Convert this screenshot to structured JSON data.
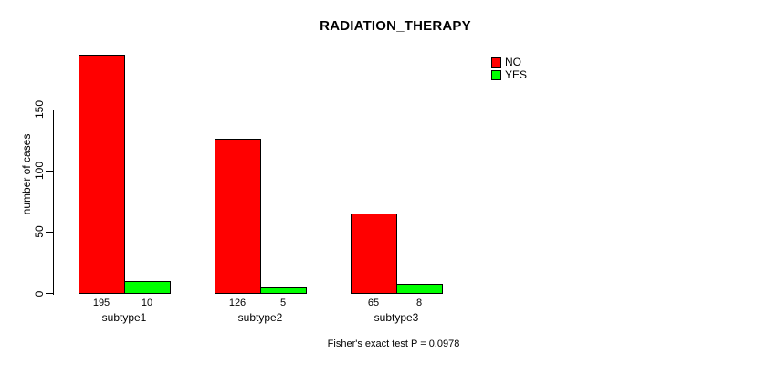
{
  "chart_data": {
    "type": "bar",
    "title": "RADIATION_THERAPY",
    "xlabel": "",
    "ylabel": "number of cases",
    "categories": [
      "subtype1",
      "subtype2",
      "subtype3"
    ],
    "series": [
      {
        "name": "NO",
        "color": "#FF0000",
        "values": [
          195,
          126,
          65
        ]
      },
      {
        "name": "YES",
        "color": "#00FF00",
        "values": [
          10,
          5,
          8
        ]
      }
    ],
    "ylim": [
      0,
      195
    ],
    "y_ticks": [
      0,
      50,
      100,
      150
    ],
    "grid": false,
    "legend_position": "top-right",
    "bar_value_labels_shown": true,
    "annotation": "Fisher's exact test P = 0.0978"
  },
  "colors": {
    "no_bar": "#FF0000",
    "yes_bar": "#00FF00",
    "axis": "#000000",
    "text": "#000000",
    "background": "#FFFFFF"
  }
}
